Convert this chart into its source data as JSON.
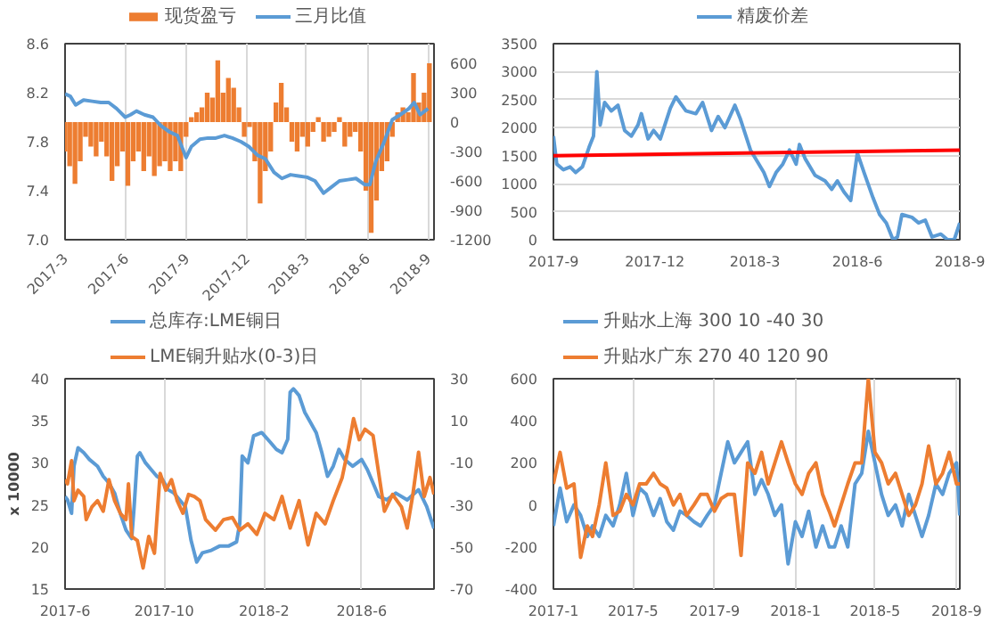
{
  "chart_data": [
    {
      "type": "line",
      "legend": "top",
      "grid": "x",
      "xlim": [
        "2017-03-01",
        "2018-09-10"
      ],
      "ylim": [
        7.0,
        8.6
      ],
      "y2lim": [
        -1200,
        800
      ],
      "xticks": [
        {
          "value": "2017-03-01",
          "label": "2017-3"
        },
        {
          "value": "2017-06-01",
          "label": "2017-6"
        },
        {
          "value": "2017-09-01",
          "label": "2017-9"
        },
        {
          "value": "2017-12-01",
          "label": "2017-12"
        },
        {
          "value": "2018-03-01",
          "label": "2018-3"
        },
        {
          "value": "2018-06-01",
          "label": "2018-6"
        },
        {
          "value": "2018-09-01",
          "label": "2018-9"
        }
      ],
      "yticks": [
        {
          "value": 7,
          "label": "7.0"
        },
        7.4,
        7.8,
        8.2,
        8.6
      ],
      "y2ticks": [
        -1200,
        -900,
        -600,
        -300,
        0,
        300,
        600
      ],
      "series": [
        {
          "name": "现货盈亏",
          "type": "bar",
          "axis": "y2",
          "color": "#ed7d31",
          "x": [
            "2017-03-01",
            "2017-03-08",
            "2017-03-16",
            "2017-03-24",
            "2017-04-01",
            "2017-04-09",
            "2017-04-17",
            "2017-04-25",
            "2017-05-03",
            "2017-05-11",
            "2017-05-19",
            "2017-05-27",
            "2017-06-04",
            "2017-06-12",
            "2017-06-20",
            "2017-06-28",
            "2017-07-06",
            "2017-07-14",
            "2017-07-22",
            "2017-07-30",
            "2017-08-07",
            "2017-08-15",
            "2017-08-23",
            "2017-08-31",
            "2017-09-08",
            "2017-09-16",
            "2017-09-24",
            "2017-10-02",
            "2017-10-10",
            "2017-10-18",
            "2017-10-26",
            "2017-11-03",
            "2017-11-11",
            "2017-11-19",
            "2017-11-27",
            "2017-12-05",
            "2017-12-13",
            "2017-12-21",
            "2017-12-29",
            "2018-01-06",
            "2018-01-14",
            "2018-01-22",
            "2018-01-30",
            "2018-02-07",
            "2018-02-15",
            "2018-02-23",
            "2018-03-03",
            "2018-03-11",
            "2018-03-19",
            "2018-03-27",
            "2018-04-04",
            "2018-04-12",
            "2018-04-20",
            "2018-04-28",
            "2018-05-06",
            "2018-05-14",
            "2018-05-22",
            "2018-05-30",
            "2018-06-07",
            "2018-06-15",
            "2018-06-23",
            "2018-07-01",
            "2018-07-09",
            "2018-07-17",
            "2018-07-25",
            "2018-08-02",
            "2018-08-10",
            "2018-08-18",
            "2018-08-26",
            "2018-09-03"
          ],
          "values": [
            -300,
            -450,
            -630,
            -400,
            -150,
            -250,
            -350,
            -200,
            -350,
            -600,
            -450,
            -300,
            -650,
            -400,
            -300,
            -500,
            -350,
            -550,
            -450,
            -400,
            -500,
            -400,
            -500,
            -150,
            50,
            100,
            150,
            300,
            250,
            630,
            300,
            450,
            350,
            150,
            -150,
            -50,
            -400,
            -830,
            -500,
            -300,
            200,
            400,
            150,
            -200,
            -300,
            -150,
            -250,
            -100,
            50,
            -200,
            -150,
            -100,
            50,
            -250,
            -150,
            -100,
            -300,
            -700,
            -1130,
            -800,
            -500,
            -400,
            -150,
            100,
            150,
            100,
            500,
            200,
            300,
            600
          ]
        },
        {
          "name": "三月比值",
          "type": "line",
          "color": "#5b9bd5",
          "x": [
            "2017-03-01",
            "2017-03-09",
            "2017-03-17",
            "2017-03-29",
            "2017-04-11",
            "2017-04-24",
            "2017-05-06",
            "2017-05-18",
            "2017-05-31",
            "2017-06-08",
            "2017-06-17",
            "2017-06-29",
            "2017-07-12",
            "2017-07-24",
            "2017-08-06",
            "2017-08-18",
            "2017-08-31",
            "2017-09-08",
            "2017-09-21",
            "2017-10-03",
            "2017-10-15",
            "2017-10-28",
            "2017-11-09",
            "2017-11-22",
            "2017-12-04",
            "2017-12-17",
            "2017-12-29",
            "2018-01-11",
            "2018-01-23",
            "2018-02-05",
            "2018-02-17",
            "2018-03-02",
            "2018-03-14",
            "2018-03-27",
            "2018-04-08",
            "2018-04-20",
            "2018-05-03",
            "2018-05-15",
            "2018-05-28",
            "2018-06-05",
            "2018-06-14",
            "2018-06-26",
            "2018-07-09",
            "2018-07-21",
            "2018-08-03",
            "2018-08-11",
            "2018-08-20",
            "2018-09-01"
          ],
          "values": [
            8.19,
            8.17,
            8.1,
            8.14,
            8.13,
            8.12,
            8.12,
            8.07,
            8.0,
            8.02,
            8.05,
            8.02,
            8.0,
            7.93,
            7.88,
            7.85,
            7.67,
            7.76,
            7.82,
            7.83,
            7.83,
            7.85,
            7.83,
            7.8,
            7.76,
            7.69,
            7.66,
            7.55,
            7.5,
            7.53,
            7.52,
            7.51,
            7.48,
            7.38,
            7.43,
            7.48,
            7.49,
            7.5,
            7.45,
            7.45,
            7.64,
            7.79,
            7.98,
            8.02,
            8.07,
            8.12,
            8.02,
            8.07
          ]
        }
      ]
    },
    {
      "type": "line",
      "legend": "top",
      "grid": "y",
      "xlim": [
        "2017-09-01",
        "2018-09-01"
      ],
      "ylim": [
        0,
        3500
      ],
      "xticks": [
        {
          "value": "2017-09-01",
          "label": "2017-9"
        },
        {
          "value": "2017-12-01",
          "label": "2017-12"
        },
        {
          "value": "2018-03-01",
          "label": "2018-3"
        },
        {
          "value": "2018-06-01",
          "label": "2018-6"
        },
        {
          "value": "2018-09-01",
          "label": "2018-9"
        }
      ],
      "yticks": [
        0,
        500,
        1000,
        1500,
        2000,
        2500,
        3000,
        3500
      ],
      "series": [
        {
          "name": "精废价差",
          "color": "#5b9bd5",
          "x": [
            "2017-09-01",
            "2017-09-04",
            "2017-09-10",
            "2017-09-16",
            "2017-09-21",
            "2017-09-27",
            "2017-10-03",
            "2017-10-07",
            "2017-10-10",
            "2017-10-13",
            "2017-10-17",
            "2017-10-23",
            "2017-10-29",
            "2017-11-04",
            "2017-11-10",
            "2017-11-16",
            "2017-11-19",
            "2017-11-25",
            "2017-11-30",
            "2017-12-06",
            "2017-12-15",
            "2017-12-20",
            "2017-12-29",
            "2018-01-07",
            "2018-01-13",
            "2018-01-21",
            "2018-01-27",
            "2018-02-02",
            "2018-02-11",
            "2018-02-16",
            "2018-02-25",
            "2018-03-03",
            "2018-03-09",
            "2018-03-14",
            "2018-03-20",
            "2018-03-26",
            "2018-04-01",
            "2018-04-07",
            "2018-04-10",
            "2018-04-15",
            "2018-04-24",
            "2018-05-03",
            "2018-05-09",
            "2018-05-14",
            "2018-05-20",
            "2018-05-26",
            "2018-06-01",
            "2018-06-07",
            "2018-06-15",
            "2018-06-21",
            "2018-06-27",
            "2018-07-03",
            "2018-07-07",
            "2018-07-11",
            "2018-07-20",
            "2018-07-26",
            "2018-08-01",
            "2018-08-07",
            "2018-08-15",
            "2018-08-21",
            "2018-08-27",
            "2018-09-01"
          ],
          "values": [
            1850,
            1350,
            1250,
            1300,
            1200,
            1300,
            1650,
            1850,
            3000,
            2050,
            2450,
            2300,
            2400,
            1950,
            1850,
            2050,
            2250,
            1800,
            1950,
            1800,
            2350,
            2550,
            2300,
            2250,
            2450,
            1950,
            2200,
            2000,
            2400,
            2150,
            1600,
            1400,
            1200,
            950,
            1200,
            1350,
            1600,
            1350,
            1700,
            1450,
            1150,
            1050,
            900,
            1050,
            850,
            700,
            1550,
            1200,
            750,
            450,
            300,
            0,
            50,
            450,
            400,
            300,
            350,
            50,
            100,
            0,
            0,
            300
          ]
        },
        {
          "color": "#ff0000",
          "x": [
            "2017-09-01",
            "2018-09-01"
          ],
          "values": [
            1500,
            1600
          ]
        }
      ]
    },
    {
      "type": "line",
      "legend": "top",
      "grid": "x",
      "ylabel": "x 10000",
      "xlim": [
        "2017-06-01",
        "2018-08-29"
      ],
      "ylim": [
        15,
        40
      ],
      "y2lim": [
        -70,
        30
      ],
      "xticks": [
        {
          "value": "2017-06-01",
          "label": "2017-6"
        },
        {
          "value": "2017-10-01",
          "label": "2017-10"
        },
        {
          "value": "2018-02-01",
          "label": "2018-2"
        },
        {
          "value": "2018-06-01",
          "label": "2018-6"
        }
      ],
      "yticks": [
        15,
        20,
        25,
        30,
        35,
        40
      ],
      "y2ticks": [
        -70,
        -50,
        -30,
        -10,
        10,
        30
      ],
      "series": [
        {
          "name": "总库存:LME铜日",
          "color": "#5b9bd5",
          "x": [
            "2017-06-01",
            "2017-06-04",
            "2017-06-09",
            "2017-06-12",
            "2017-06-17",
            "2017-06-24",
            "2017-07-01",
            "2017-07-11",
            "2017-07-18",
            "2017-07-25",
            "2017-08-01",
            "2017-08-08",
            "2017-08-15",
            "2017-08-22",
            "2017-08-25",
            "2017-08-29",
            "2017-09-01",
            "2017-09-08",
            "2017-09-15",
            "2017-09-22",
            "2017-09-29",
            "2017-10-06",
            "2017-10-13",
            "2017-10-20",
            "2017-10-27",
            "2017-11-03",
            "2017-11-10",
            "2017-11-17",
            "2017-11-28",
            "2017-12-08",
            "2017-12-19",
            "2017-12-29",
            "2018-01-02",
            "2018-01-05",
            "2018-01-12",
            "2018-01-19",
            "2018-01-29",
            "2018-02-09",
            "2018-02-16",
            "2018-02-23",
            "2018-03-02",
            "2018-03-05",
            "2018-03-09",
            "2018-03-16",
            "2018-03-23",
            "2018-03-30",
            "2018-04-06",
            "2018-04-13",
            "2018-04-20",
            "2018-04-27",
            "2018-05-04",
            "2018-05-11",
            "2018-05-21",
            "2018-06-01",
            "2018-06-08",
            "2018-06-15",
            "2018-06-22",
            "2018-07-02",
            "2018-07-13",
            "2018-07-27",
            "2018-08-10",
            "2018-08-20",
            "2018-08-29"
          ],
          "values": [
            26,
            25.6,
            24,
            29.6,
            31.8,
            31.2,
            30.4,
            29.6,
            28.4,
            27.6,
            26.4,
            24,
            22,
            21,
            24.8,
            30.8,
            31.2,
            30,
            29.2,
            28.4,
            28,
            26.8,
            26.4,
            25.6,
            24.8,
            20.8,
            18.2,
            19.3,
            19.6,
            20.1,
            20.1,
            20.6,
            22.8,
            30.8,
            30,
            33.2,
            33.6,
            32.4,
            31.6,
            31.2,
            32.8,
            38.4,
            38.8,
            38,
            36,
            34.8,
            33.6,
            31.2,
            28.4,
            29.6,
            31.6,
            30.4,
            29.6,
            30.4,
            29.2,
            27.6,
            26,
            25.6,
            26.4,
            25.6,
            26.8,
            24.8,
            22.2
          ]
        },
        {
          "name": "LME铜升贴水(0-3)日",
          "axis": "y2",
          "color": "#ed7d31",
          "x": [
            "2017-06-01",
            "2017-06-04",
            "2017-06-09",
            "2017-06-12",
            "2017-06-17",
            "2017-06-24",
            "2017-06-27",
            "2017-07-04",
            "2017-07-11",
            "2017-07-18",
            "2017-07-25",
            "2017-08-01",
            "2017-08-08",
            "2017-08-15",
            "2017-08-18",
            "2017-08-22",
            "2017-08-29",
            "2017-09-05",
            "2017-09-12",
            "2017-09-19",
            "2017-09-26",
            "2017-10-03",
            "2017-10-10",
            "2017-10-17",
            "2017-10-24",
            "2017-10-31",
            "2017-11-07",
            "2017-11-14",
            "2017-11-21",
            "2017-12-03",
            "2017-12-13",
            "2017-12-24",
            "2018-01-02",
            "2018-01-12",
            "2018-01-23",
            "2018-02-02",
            "2018-02-13",
            "2018-02-23",
            "2018-03-05",
            "2018-03-16",
            "2018-03-27",
            "2018-04-06",
            "2018-04-17",
            "2018-04-27",
            "2018-05-08",
            "2018-05-15",
            "2018-05-22",
            "2018-05-29",
            "2018-06-05",
            "2018-06-15",
            "2018-06-22",
            "2018-06-29",
            "2018-07-09",
            "2018-07-20",
            "2018-07-27",
            "2018-08-03",
            "2018-08-10",
            "2018-08-17",
            "2018-08-24",
            "2018-08-29"
          ],
          "values": [
            -18,
            -20,
            -9,
            -28,
            -23,
            -26,
            -37,
            -31,
            -28,
            -33,
            -18,
            -28,
            -34,
            -37,
            -20,
            -45,
            -47,
            -60,
            -45,
            -53,
            -15,
            -23,
            -18,
            -28,
            -34,
            -25,
            -26,
            -28,
            -37,
            -42,
            -37,
            -36,
            -42,
            -39,
            -44,
            -34,
            -37,
            -26,
            -41,
            -28,
            -49,
            -34,
            -39,
            -28,
            -17,
            -4,
            11,
            1,
            6,
            3,
            -15,
            -33,
            -25,
            -31,
            -41,
            -25,
            -5,
            -26,
            -17,
            -25
          ]
        }
      ]
    },
    {
      "type": "line",
      "legend": "top",
      "grid": "x",
      "xlim": [
        "2017-01-01",
        "2018-09-06"
      ],
      "ylim": [
        -400,
        600
      ],
      "xticks": [
        {
          "value": "2017-01-01",
          "label": "2017-1"
        },
        {
          "value": "2017-05-01",
          "label": "2017-5"
        },
        {
          "value": "2017-09-01",
          "label": "2017-9"
        },
        {
          "value": "2018-01-01",
          "label": "2018-1"
        },
        {
          "value": "2018-05-01",
          "label": "2018-5"
        },
        {
          "value": "2018-09-01",
          "label": "2018-9"
        }
      ],
      "yticks": [
        -400,
        -200,
        0,
        200,
        400,
        600
      ],
      "x": [
        "2017-01-01",
        "2017-01-11",
        "2017-01-21",
        "2017-02-01",
        "2017-02-11",
        "2017-02-21",
        "2017-03-01",
        "2017-03-11",
        "2017-03-21",
        "2017-04-01",
        "2017-04-11",
        "2017-04-21",
        "2017-05-01",
        "2017-05-11",
        "2017-05-21",
        "2017-06-01",
        "2017-06-11",
        "2017-06-21",
        "2017-07-01",
        "2017-07-11",
        "2017-07-21",
        "2017-08-01",
        "2017-08-11",
        "2017-08-21",
        "2017-09-01",
        "2017-09-11",
        "2017-09-21",
        "2017-10-01",
        "2017-10-11",
        "2017-10-21",
        "2017-11-01",
        "2017-11-11",
        "2017-11-21",
        "2017-12-01",
        "2017-12-11",
        "2017-12-21",
        "2018-01-01",
        "2018-01-11",
        "2018-01-21",
        "2018-02-01",
        "2018-02-11",
        "2018-02-21",
        "2018-03-01",
        "2018-03-11",
        "2018-03-21",
        "2018-04-01",
        "2018-04-11",
        "2018-04-21",
        "2018-05-01",
        "2018-05-11",
        "2018-05-21",
        "2018-06-01",
        "2018-06-11",
        "2018-06-21",
        "2018-07-01",
        "2018-07-11",
        "2018-07-21",
        "2018-08-01",
        "2018-08-11",
        "2018-08-21",
        "2018-09-01",
        "2018-09-06"
      ],
      "series": [
        {
          "name": "升贴水上海 300 10 -40 30",
          "color": "#5b9bd5",
          "values": [
            -100,
            80,
            -80,
            0,
            -50,
            -150,
            -100,
            -150,
            -50,
            -100,
            0,
            150,
            -50,
            80,
            50,
            -50,
            30,
            -80,
            -120,
            -30,
            -50,
            -80,
            -100,
            -50,
            0,
            150,
            300,
            200,
            250,
            300,
            50,
            120,
            50,
            -50,
            0,
            -280,
            -80,
            -150,
            -30,
            -200,
            -100,
            -200,
            -200,
            -100,
            -200,
            100,
            150,
            350,
            200,
            50,
            -50,
            0,
            -100,
            50,
            -50,
            -150,
            -50,
            100,
            50,
            150,
            200,
            -50
          ]
        },
        {
          "name": "升贴水广东 270 40 120 90",
          "color": "#ed7d31",
          "values": [
            100,
            250,
            80,
            100,
            -250,
            -100,
            -150,
            0,
            200,
            -50,
            -30,
            50,
            0,
            100,
            100,
            150,
            100,
            80,
            0,
            50,
            -50,
            0,
            50,
            50,
            -30,
            30,
            50,
            50,
            -240,
            200,
            150,
            250,
            100,
            200,
            300,
            200,
            100,
            50,
            150,
            200,
            50,
            -30,
            -100,
            0,
            100,
            200,
            200,
            600,
            250,
            200,
            100,
            150,
            50,
            -50,
            0,
            100,
            280,
            100,
            150,
            250,
            100,
            100
          ]
        }
      ]
    }
  ]
}
